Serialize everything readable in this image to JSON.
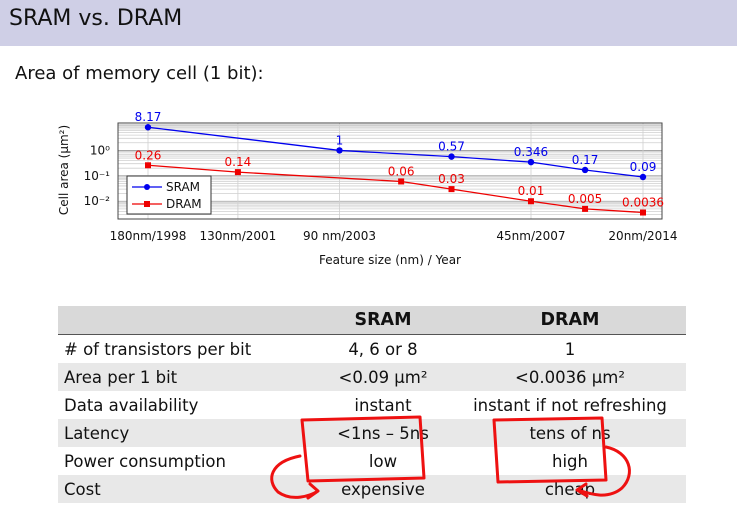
{
  "slide": {
    "title": "SRAM vs. DRAM",
    "subtitle": "Area of memory cell (1 bit):"
  },
  "chart_data": {
    "type": "line",
    "ylabel": "Cell area (μm²)",
    "xlabel": "Feature size (nm) / Year",
    "y_scale": "log",
    "ylim": [
      0.002,
      12
    ],
    "y_ticks": [
      {
        "value": 1,
        "label": "10⁰"
      },
      {
        "value": 0.1,
        "label": "10⁻¹"
      },
      {
        "value": 0.01,
        "label": "10⁻²"
      }
    ],
    "x_tick_labels": [
      "180nm/1998",
      "130nm/2001",
      "90 nm/2003",
      "45nm/2007",
      "20nm/2014"
    ],
    "grid": true,
    "legend": "bottom-left",
    "series": [
      {
        "name": "SRAM",
        "color": "#0000ee",
        "marker": "circle",
        "points": [
          {
            "x": "180nm/1998",
            "y": 8.17,
            "label": "8.17"
          },
          {
            "x": "90 nm/2003",
            "y": 1,
            "label": "1"
          },
          {
            "x": "65nm",
            "y": 0.57,
            "label": "0.57"
          },
          {
            "x": "45nm/2007",
            "y": 0.346,
            "label": "0.346"
          },
          {
            "x": "32nm",
            "y": 0.17,
            "label": "0.17"
          },
          {
            "x": "20nm/2014",
            "y": 0.09,
            "label": "0.09"
          }
        ]
      },
      {
        "name": "DRAM",
        "color": "#ee0000",
        "marker": "square",
        "points": [
          {
            "x": "180nm/1998",
            "y": 0.26,
            "label": "0.26"
          },
          {
            "x": "130nm/2001",
            "y": 0.14,
            "label": "0.14"
          },
          {
            "x": "90nm",
            "y": 0.06,
            "label": "0.06"
          },
          {
            "x": "65nm",
            "y": 0.03,
            "label": "0.03"
          },
          {
            "x": "45nm/2007",
            "y": 0.01,
            "label": "0.01"
          },
          {
            "x": "32nm",
            "y": 0.005,
            "label": "0.005"
          },
          {
            "x": "20nm/2014",
            "y": 0.0036,
            "label": "0.0036"
          }
        ]
      }
    ]
  },
  "table": {
    "headers": [
      "",
      "SRAM",
      "DRAM"
    ],
    "rows": [
      [
        "# of transistors per bit",
        "4, 6 or 8",
        "1"
      ],
      [
        "Area per 1 bit",
        "<0.09 μm²",
        "<0.0036 μm²"
      ],
      [
        "Data availability",
        "instant",
        "instant if not refreshing"
      ],
      [
        "Latency",
        "<1ns – 5ns",
        "tens of ns"
      ],
      [
        "Power consumption",
        "low",
        "high"
      ],
      [
        "Cost",
        "expensive",
        "cheap"
      ]
    ]
  },
  "annotation_color": "#ee1111"
}
